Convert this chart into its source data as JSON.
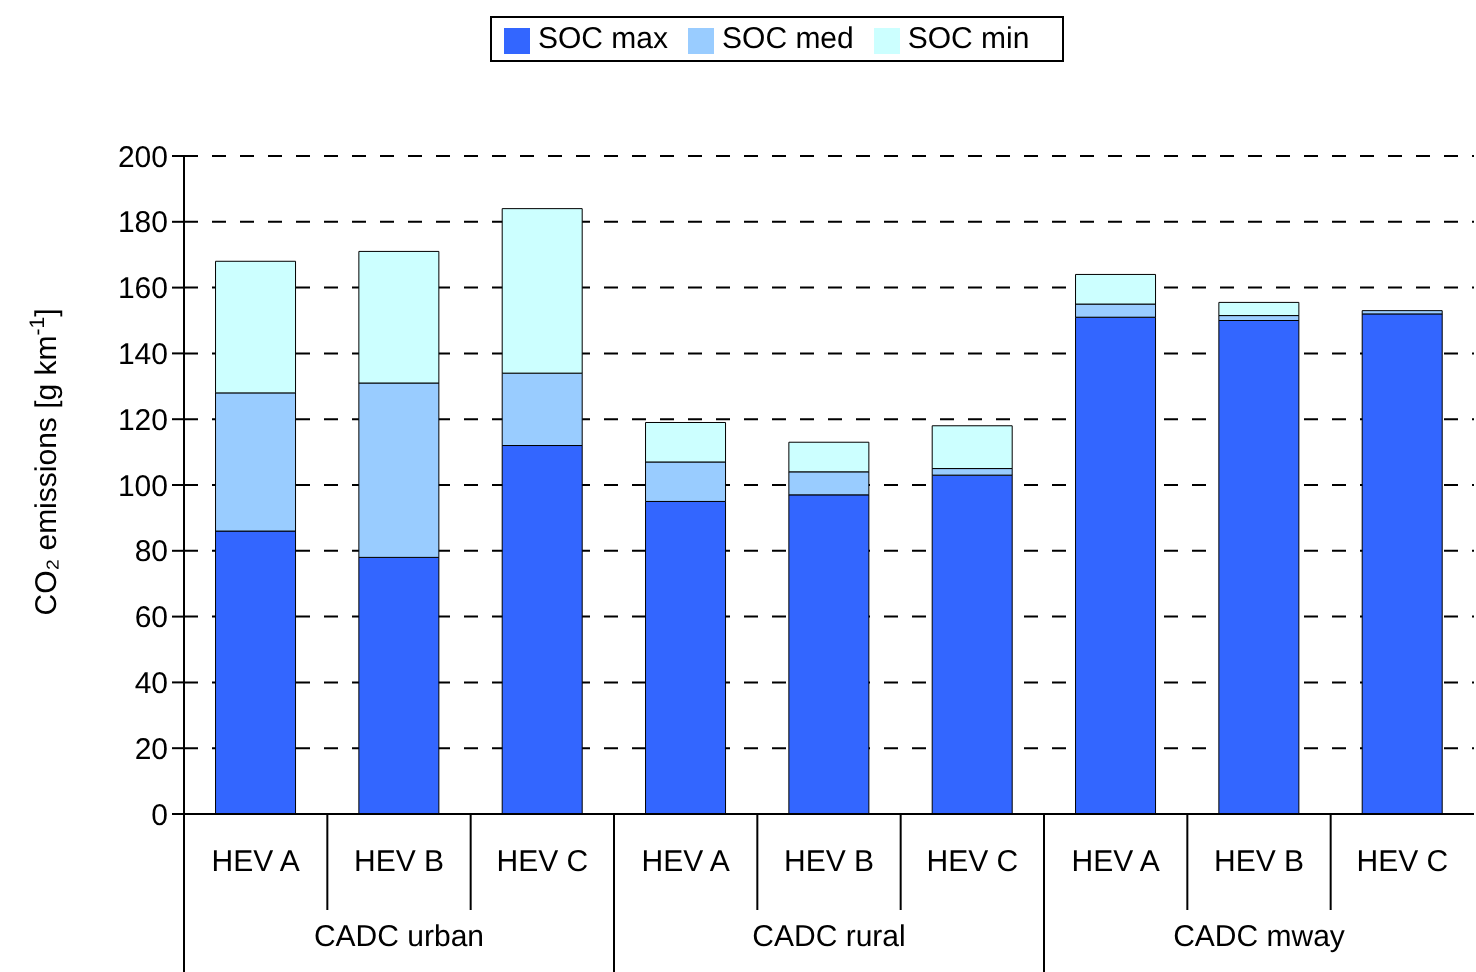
{
  "chart_data": {
    "type": "bar",
    "stacked": true,
    "ylabel": "CO₂ emissions [g km$^{-1}$]",
    "categories": [
      "HEV A",
      "HEV B",
      "HEV C",
      "HEV A",
      "HEV B",
      "HEV C",
      "HEV A",
      "HEV B",
      "HEV C"
    ],
    "annotations": [
      "CADC urban",
      "CADC rural",
      "CADC mway"
    ],
    "series": [
      {
        "name": "SOC max",
        "color": "#3366ff",
        "values": [
          86,
          78,
          112,
          95,
          97,
          103,
          151,
          150,
          152
        ]
      },
      {
        "name": "SOC med",
        "color": "#99ccff",
        "values": [
          42,
          53,
          22,
          12,
          7,
          2,
          4,
          1.5,
          1
        ]
      },
      {
        "name": "SOC min",
        "color": "#ccffff",
        "values": [
          40,
          40,
          50,
          12,
          9,
          13,
          9,
          4,
          null
        ]
      }
    ],
    "ylim": [
      0,
      200
    ],
    "yticks": [
      0,
      20,
      40,
      60,
      80,
      100,
      120,
      140,
      160,
      180,
      200
    ],
    "grid": "y",
    "legend": "top"
  }
}
